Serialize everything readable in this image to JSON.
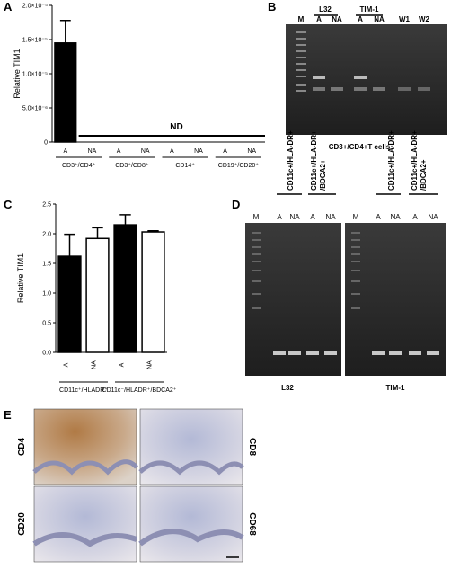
{
  "chart_data": [
    {
      "type": "bar",
      "panel": "A",
      "y_label": "Relative TIM1",
      "categories": [
        "A",
        "NA",
        "A",
        "NA",
        "A",
        "NA",
        "A",
        "NA"
      ],
      "groups": [
        "CD3⁺/CD4⁺",
        "CD3⁺/CD8⁺",
        "CD14⁺",
        "CD19⁺/CD20⁺"
      ],
      "values": [
        1.45e-05,
        null,
        null,
        null,
        null,
        null,
        null,
        null
      ],
      "errors": [
        3.3e-06,
        null,
        null,
        null,
        null,
        null,
        null,
        null
      ],
      "colors": [
        "#000000",
        "#ffffff",
        "#000000",
        "#ffffff",
        "#000000",
        "#ffffff",
        "#000000",
        "#ffffff"
      ],
      "annotation": "ND",
      "ylim": [
        0,
        2e-05
      ],
      "yticks": [
        0,
        {
          "value": 5e-06,
          "label": "5.0×10⁻⁶"
        },
        {
          "value": 1e-05,
          "label": "1.0×10⁻⁵"
        },
        {
          "value": 1.5e-05,
          "label": "1.5×10⁻⁵"
        },
        {
          "value": 2e-05,
          "label": "2.0×10⁻⁵"
        }
      ]
    },
    {
      "type": "bar",
      "panel": "C",
      "y_label": "Relative TIM1",
      "categories": [
        "A",
        "NA",
        "A",
        "NA"
      ],
      "groups": [
        "CD11c⁺/HLADR⁺",
        "CD11c⁻/HLADR⁺/BDCA2⁺"
      ],
      "values": [
        1.62,
        1.92,
        2.15,
        2.03
      ],
      "errors": [
        0.37,
        0.18,
        0.17,
        0.02
      ],
      "colors": [
        "#000000",
        "#ffffff",
        "#000000",
        "#ffffff"
      ],
      "ylim": [
        0,
        2.5
      ],
      "yticks": [
        {
          "value": 0,
          "label": "0.0"
        },
        0.5,
        {
          "value": 1,
          "label": "1.0"
        },
        1.5,
        {
          "value": 2,
          "label": "2.0"
        },
        2.5
      ]
    }
  ],
  "panel_b": {
    "label": "B",
    "lanes": [
      "M",
      "A",
      "NA",
      "A",
      "NA",
      "W1",
      "W2"
    ],
    "headers": [
      "L32",
      "TIM-1"
    ],
    "caption": "CD3+/CD4+T cells"
  },
  "panel_d": {
    "label": "D",
    "headers": [
      [
        "CD11c+/HLA-DR+"
      ],
      [
        "CD11c+/HLA-DR+",
        "/BDCA2+"
      ]
    ],
    "lanes": [
      "M",
      "A",
      "NA",
      "A",
      "NA"
    ],
    "captions": [
      "L32",
      "TIM-1"
    ]
  },
  "panel_e": {
    "label": "E",
    "stains": [
      "CD4",
      "CD8",
      "CD20",
      "CD68"
    ]
  }
}
